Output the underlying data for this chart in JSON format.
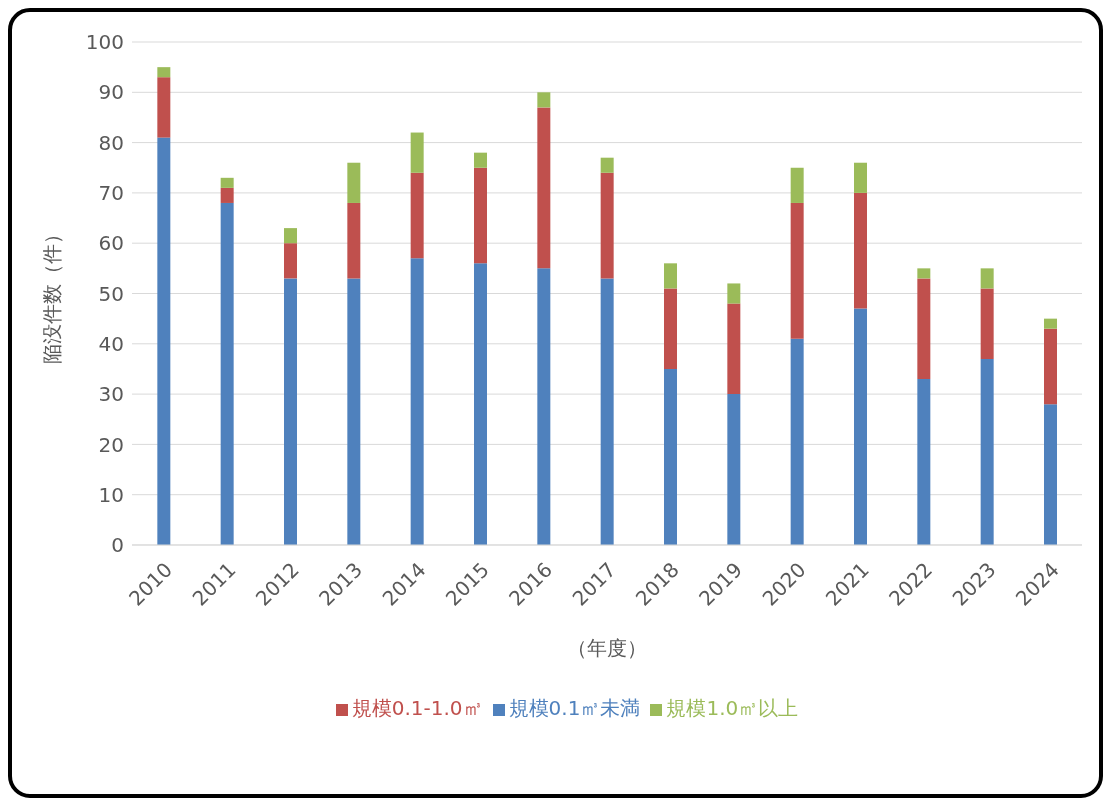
{
  "chart_data": {
    "type": "bar",
    "stacked": true,
    "xlabel": "（年度）",
    "ylabel": "陥没件数（件）",
    "categories": [
      "2010",
      "2011",
      "2012",
      "2013",
      "2014",
      "2015",
      "2016",
      "2017",
      "2018",
      "2019",
      "2020",
      "2021",
      "2022",
      "2023",
      "2024"
    ],
    "series": [
      {
        "name": "規模0.1㎥未満",
        "color": "#4f81bd",
        "values": [
          81,
          68,
          53,
          53,
          57,
          56,
          55,
          53,
          35,
          30,
          41,
          47,
          33,
          37,
          28
        ]
      },
      {
        "name": "規模0.1-1.0㎥",
        "color": "#c0504d",
        "values": [
          12,
          3,
          7,
          15,
          17,
          19,
          32,
          21,
          16,
          18,
          27,
          23,
          20,
          14,
          15
        ]
      },
      {
        "name": "規模1.0㎥以上",
        "color": "#9bbb59",
        "values": [
          2,
          2,
          3,
          8,
          8,
          3,
          3,
          3,
          5,
          4,
          7,
          6,
          2,
          4,
          2
        ]
      }
    ],
    "ylim": [
      0,
      100
    ],
    "yticks": [
      0,
      10,
      20,
      30,
      40,
      50,
      60,
      70,
      80,
      90,
      100
    ],
    "grid": "y",
    "legend": "bottom"
  }
}
